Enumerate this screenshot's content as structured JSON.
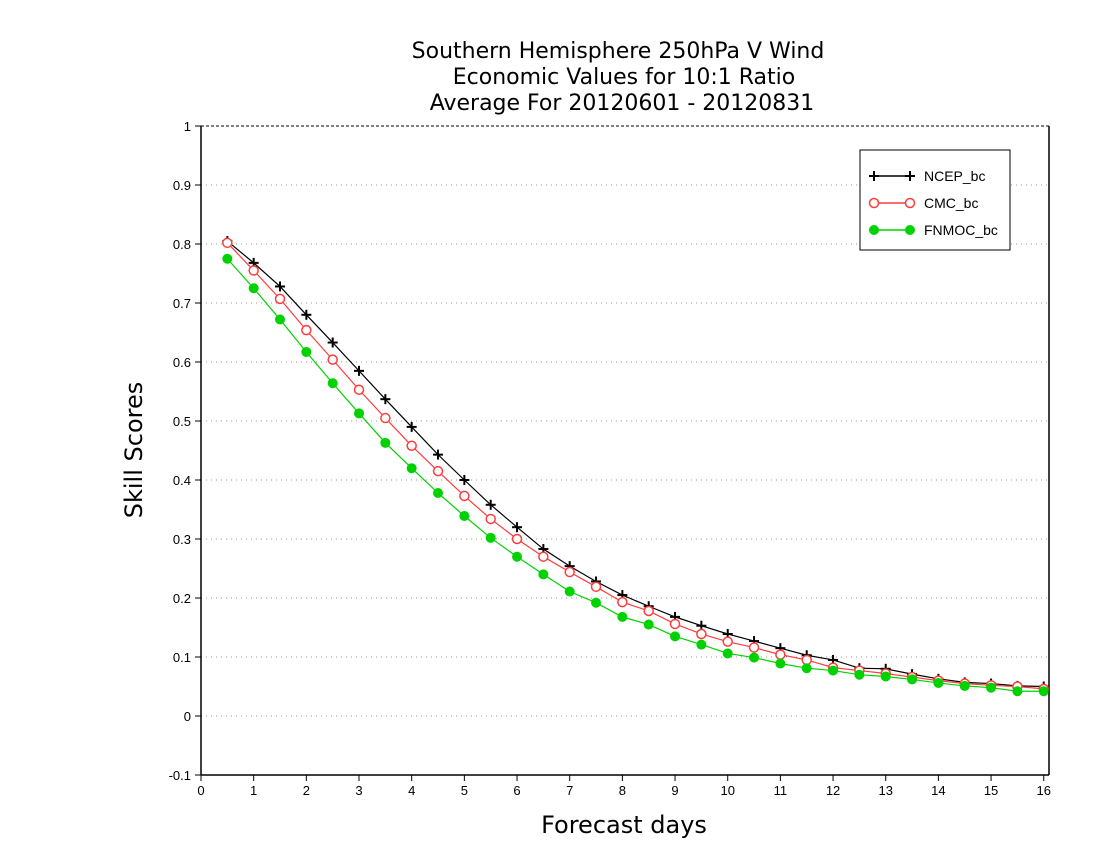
{
  "chart_data": {
    "type": "line",
    "title_lines": [
      "Southern Hemisphere 250hPa V Wind",
      "Economic Values for 10:1 Ratio",
      "Average For 20120601 - 20120831"
    ],
    "xlabel": "Forecast days",
    "ylabel": "Skill Scores",
    "xlim": [
      0,
      16.1
    ],
    "ylim": [
      -0.1,
      1
    ],
    "x_ticks": [
      0,
      1,
      2,
      3,
      4,
      5,
      6,
      7,
      8,
      9,
      10,
      11,
      12,
      13,
      14,
      15,
      16
    ],
    "x_tick_labels": [
      "0",
      "1",
      "2",
      "3",
      "4",
      "5",
      "6",
      "7",
      "8",
      "9",
      "10",
      "11",
      "12",
      "13",
      "14",
      "15",
      "16"
    ],
    "y_ticks": [
      -0.1,
      0,
      0.1,
      0.2,
      0.3,
      0.4,
      0.5,
      0.6,
      0.7,
      0.8,
      0.9,
      1
    ],
    "y_tick_labels": [
      "-0.1",
      "0",
      "0.1",
      "0.2",
      "0.3",
      "0.4",
      "0.5",
      "0.6",
      "0.7",
      "0.8",
      "0.9",
      "1"
    ],
    "grid": "horizontal dotted",
    "legend_position": "top-right",
    "x": [
      0.5,
      1,
      1.5,
      2,
      2.5,
      3,
      3.5,
      4,
      4.5,
      5,
      5.5,
      6,
      6.5,
      7,
      7.5,
      8,
      8.5,
      9,
      9.5,
      10,
      10.5,
      11,
      11.5,
      12,
      12.5,
      13,
      13.5,
      14,
      14.5,
      15,
      15.5,
      16
    ],
    "series": [
      {
        "name": "NCEP_bc",
        "color": "#000000",
        "marker": "plus",
        "values": [
          0.805,
          0.768,
          0.728,
          0.68,
          0.633,
          0.585,
          0.537,
          0.49,
          0.443,
          0.4,
          0.358,
          0.32,
          0.283,
          0.254,
          0.228,
          0.205,
          0.186,
          0.168,
          0.153,
          0.139,
          0.127,
          0.115,
          0.103,
          0.095,
          0.081,
          0.08,
          0.071,
          0.063,
          0.057,
          0.055,
          0.051,
          0.05
        ]
      },
      {
        "name": "CMC_bc",
        "color": "#ff3c3c",
        "marker": "open-circle",
        "values": [
          0.802,
          0.755,
          0.707,
          0.654,
          0.604,
          0.553,
          0.505,
          0.458,
          0.415,
          0.373,
          0.334,
          0.3,
          0.27,
          0.244,
          0.219,
          0.193,
          0.178,
          0.156,
          0.139,
          0.126,
          0.116,
          0.104,
          0.095,
          0.082,
          0.077,
          0.072,
          0.066,
          0.06,
          0.055,
          0.052,
          0.05,
          0.046
        ]
      },
      {
        "name": "FNMOC_bc",
        "color": "#00d200",
        "marker": "filled-circle",
        "values": [
          0.775,
          0.725,
          0.672,
          0.617,
          0.564,
          0.513,
          0.463,
          0.42,
          0.378,
          0.339,
          0.302,
          0.27,
          0.24,
          0.211,
          0.192,
          0.168,
          0.155,
          0.135,
          0.121,
          0.106,
          0.099,
          0.089,
          0.081,
          0.077,
          0.07,
          0.067,
          0.062,
          0.056,
          0.051,
          0.048,
          0.042,
          0.042
        ]
      }
    ]
  }
}
